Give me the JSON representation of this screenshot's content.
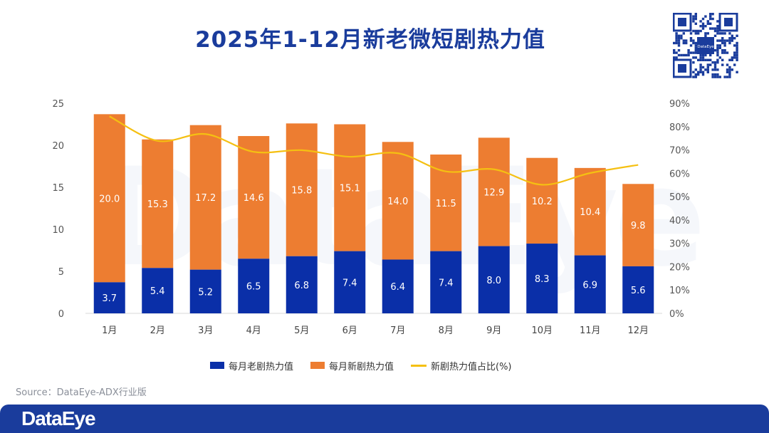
{
  "title": "2025年1-12月新老微短剧热力值",
  "watermark_text": "DataEye",
  "source": "Source：DataEye-ADX行业版",
  "footer_logo": "DataEye",
  "qr_logo_text": "DataEye",
  "colors": {
    "old": "#0a2fa8",
    "new": "#ed7d31",
    "ratio": "#f5c012",
    "brand": "#1a3c9c"
  },
  "chart_data": {
    "type": "bar",
    "stacked": true,
    "title": "2025年1-12月新老微短剧热力值",
    "categories": [
      "1月",
      "2月",
      "3月",
      "4月",
      "5月",
      "6月",
      "7月",
      "8月",
      "9月",
      "10月",
      "11月",
      "12月"
    ],
    "series": [
      {
        "name": "每月老剧热力值",
        "type": "bar",
        "axis": "left",
        "values": [
          3.7,
          5.4,
          5.2,
          6.5,
          6.8,
          7.4,
          6.4,
          7.4,
          8.0,
          8.3,
          6.9,
          5.6
        ]
      },
      {
        "name": "每月新剧热力值",
        "type": "bar",
        "axis": "left",
        "values": [
          20.0,
          15.3,
          17.2,
          14.6,
          15.8,
          15.1,
          14.0,
          11.5,
          12.9,
          10.2,
          10.4,
          9.8
        ]
      },
      {
        "name": "新剧热力值占比(%)",
        "type": "line",
        "axis": "right",
        "values": [
          84.4,
          73.9,
          76.8,
          69.2,
          69.9,
          67.1,
          68.6,
          60.8,
          61.7,
          55.1,
          60.1,
          63.6
        ]
      }
    ],
    "y_left": {
      "min": 0,
      "max": 25,
      "ticks": [
        "0",
        "5",
        "10",
        "15",
        "20",
        "25"
      ]
    },
    "y_right": {
      "min": 0,
      "max": 90,
      "ticks": [
        "0%",
        "10%",
        "20%",
        "30%",
        "40%",
        "50%",
        "60%",
        "70%",
        "80%",
        "90%"
      ]
    },
    "legend_position": "bottom",
    "grid": false
  }
}
